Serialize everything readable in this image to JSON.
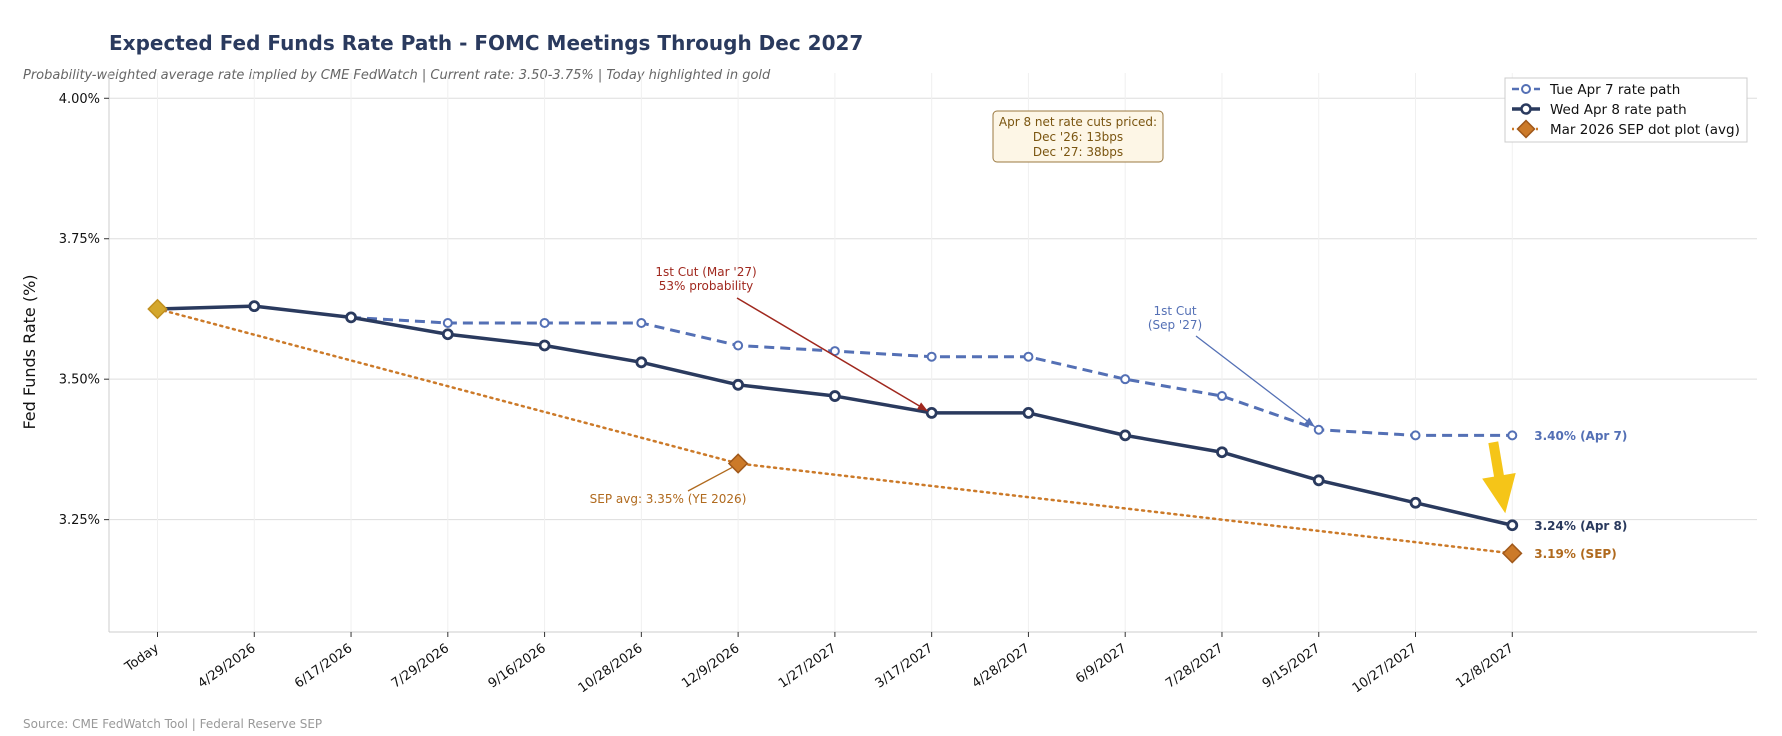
{
  "title": "Expected Fed Funds Rate Path - FOMC Meetings Through Dec 2027",
  "subtitle": "Probability-weighted average rate implied by CME FedWatch  |  Current rate: 3.50-3.75%  |  Today highlighted in gold",
  "source": "Source: CME FedWatch Tool  |  Federal Reserve SEP",
  "colors": {
    "apr7": "#5470b5",
    "apr8": "#2a3a5e",
    "sep": "#cc7a29",
    "today": "#d4a72c",
    "highlight_arrow": "#f5c518",
    "cut_mar": "#a0281e",
    "box_bg": "#fdf6e6",
    "box_border": "#9a7840",
    "box_text": "#7a5510"
  },
  "chart_data": {
    "type": "line",
    "title": "Expected Fed Funds Rate Path - FOMC Meetings Through Dec 2027",
    "ylabel": "Fed Funds Rate (%)",
    "xlabel": "",
    "ylim": [
      3.05,
      4.045
    ],
    "yticks": [
      3.25,
      3.5,
      3.75,
      4.0
    ],
    "ytick_labels": [
      "3.25%",
      "3.50%",
      "3.75%",
      "4.00%"
    ],
    "categories": [
      "Today",
      "4/29/2026",
      "6/17/2026",
      "7/29/2026",
      "9/16/2026",
      "10/28/2026",
      "12/9/2026",
      "1/27/2027",
      "3/17/2027",
      "4/28/2027",
      "6/9/2027",
      "7/28/2027",
      "9/15/2027",
      "10/27/2027",
      "12/8/2027"
    ],
    "grid": true,
    "legend_position": "top-right",
    "series": [
      {
        "key": "apr7",
        "name": "Tue Apr 7 rate path",
        "style": "dashed",
        "values": [
          null,
          null,
          3.61,
          3.6,
          3.6,
          3.6,
          3.56,
          3.55,
          3.54,
          3.54,
          3.5,
          3.47,
          3.41,
          3.4,
          3.4
        ]
      },
      {
        "key": "apr8",
        "name": "Wed Apr 8 rate path",
        "style": "solid",
        "values": [
          3.625,
          3.63,
          3.61,
          3.58,
          3.56,
          3.53,
          3.49,
          3.47,
          3.44,
          3.44,
          3.4,
          3.37,
          3.32,
          3.28,
          3.24
        ]
      },
      {
        "key": "sep",
        "name": "Mar 2026 SEP dot plot (avg)",
        "style": "dotted",
        "points": [
          {
            "index": 0,
            "value": 3.625
          },
          {
            "index": 6,
            "value": 3.35
          },
          {
            "index": 14,
            "value": 3.19
          }
        ]
      }
    ],
    "annotations": {
      "box": {
        "lines": [
          "Apr 8 net rate cuts priced:",
          "Dec '26: 13bps",
          "Dec '27: 38bps"
        ]
      },
      "first_cut_mar": {
        "lines": [
          "1st Cut (Mar '27)",
          "53% probability"
        ],
        "target_index": 8,
        "target_value": 3.44
      },
      "first_cut_sep": {
        "lines": [
          "1st Cut",
          "(Sep '27)"
        ],
        "target_index": 12,
        "target_value": 3.41
      },
      "sep_avg": {
        "text": "SEP avg: 3.35% (YE 2026)",
        "target_index": 6,
        "target_value": 3.35
      },
      "end_labels": [
        {
          "key": "apr7",
          "text": "3.40% (Apr 7)",
          "value": 3.4
        },
        {
          "key": "apr8",
          "text": "3.24% (Apr 8)",
          "value": 3.24
        },
        {
          "key": "sep",
          "text": "3.19% (SEP)",
          "value": 3.19
        }
      ]
    }
  }
}
